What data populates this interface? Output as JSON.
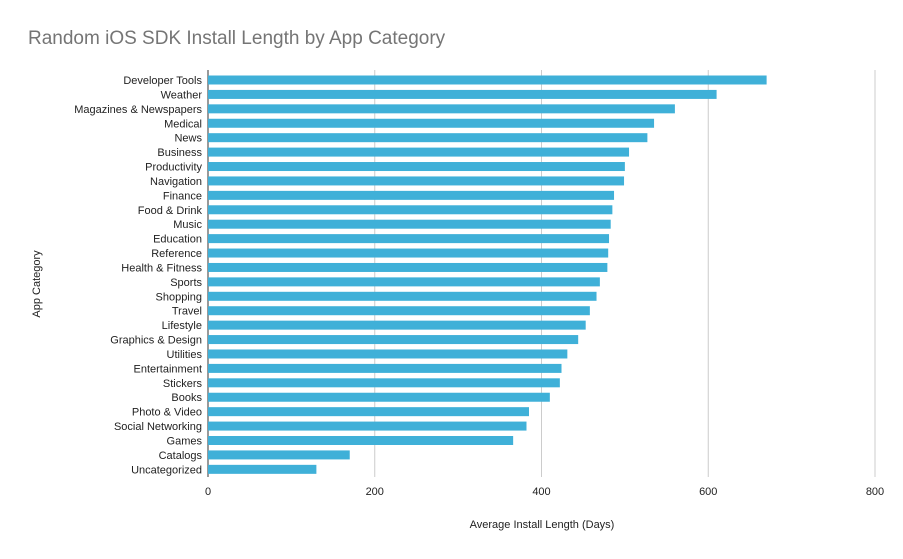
{
  "chart_data": {
    "type": "bar",
    "orientation": "horizontal",
    "title": "Random iOS SDK Install Length by App Category",
    "xlabel": "Average Install Length (Days)",
    "ylabel": "App Category",
    "xlim": [
      0,
      800
    ],
    "xticks": [
      0,
      200,
      400,
      600,
      800
    ],
    "grid": true,
    "legend": "none",
    "bar_color": "#3fb0d8",
    "categories": [
      "Developer Tools",
      "Weather",
      "Magazines & Newspapers",
      "Medical",
      "News",
      "Business",
      "Productivity",
      "Navigation",
      "Finance",
      "Food & Drink",
      "Music",
      "Education",
      "Reference",
      "Health & Fitness",
      "Sports",
      "Shopping",
      "Travel",
      "Lifestyle",
      "Graphics & Design",
      "Utilities",
      "Entertainment",
      "Stickers",
      "Books",
      "Photo & Video",
      "Social Networking",
      "Games",
      "Catalogs",
      "Uncategorized"
    ],
    "values": [
      670,
      610,
      560,
      535,
      527,
      505,
      500,
      499,
      487,
      485,
      483,
      481,
      480,
      479,
      470,
      466,
      458,
      453,
      444,
      431,
      424,
      422,
      410,
      385,
      382,
      366,
      170,
      130
    ]
  }
}
